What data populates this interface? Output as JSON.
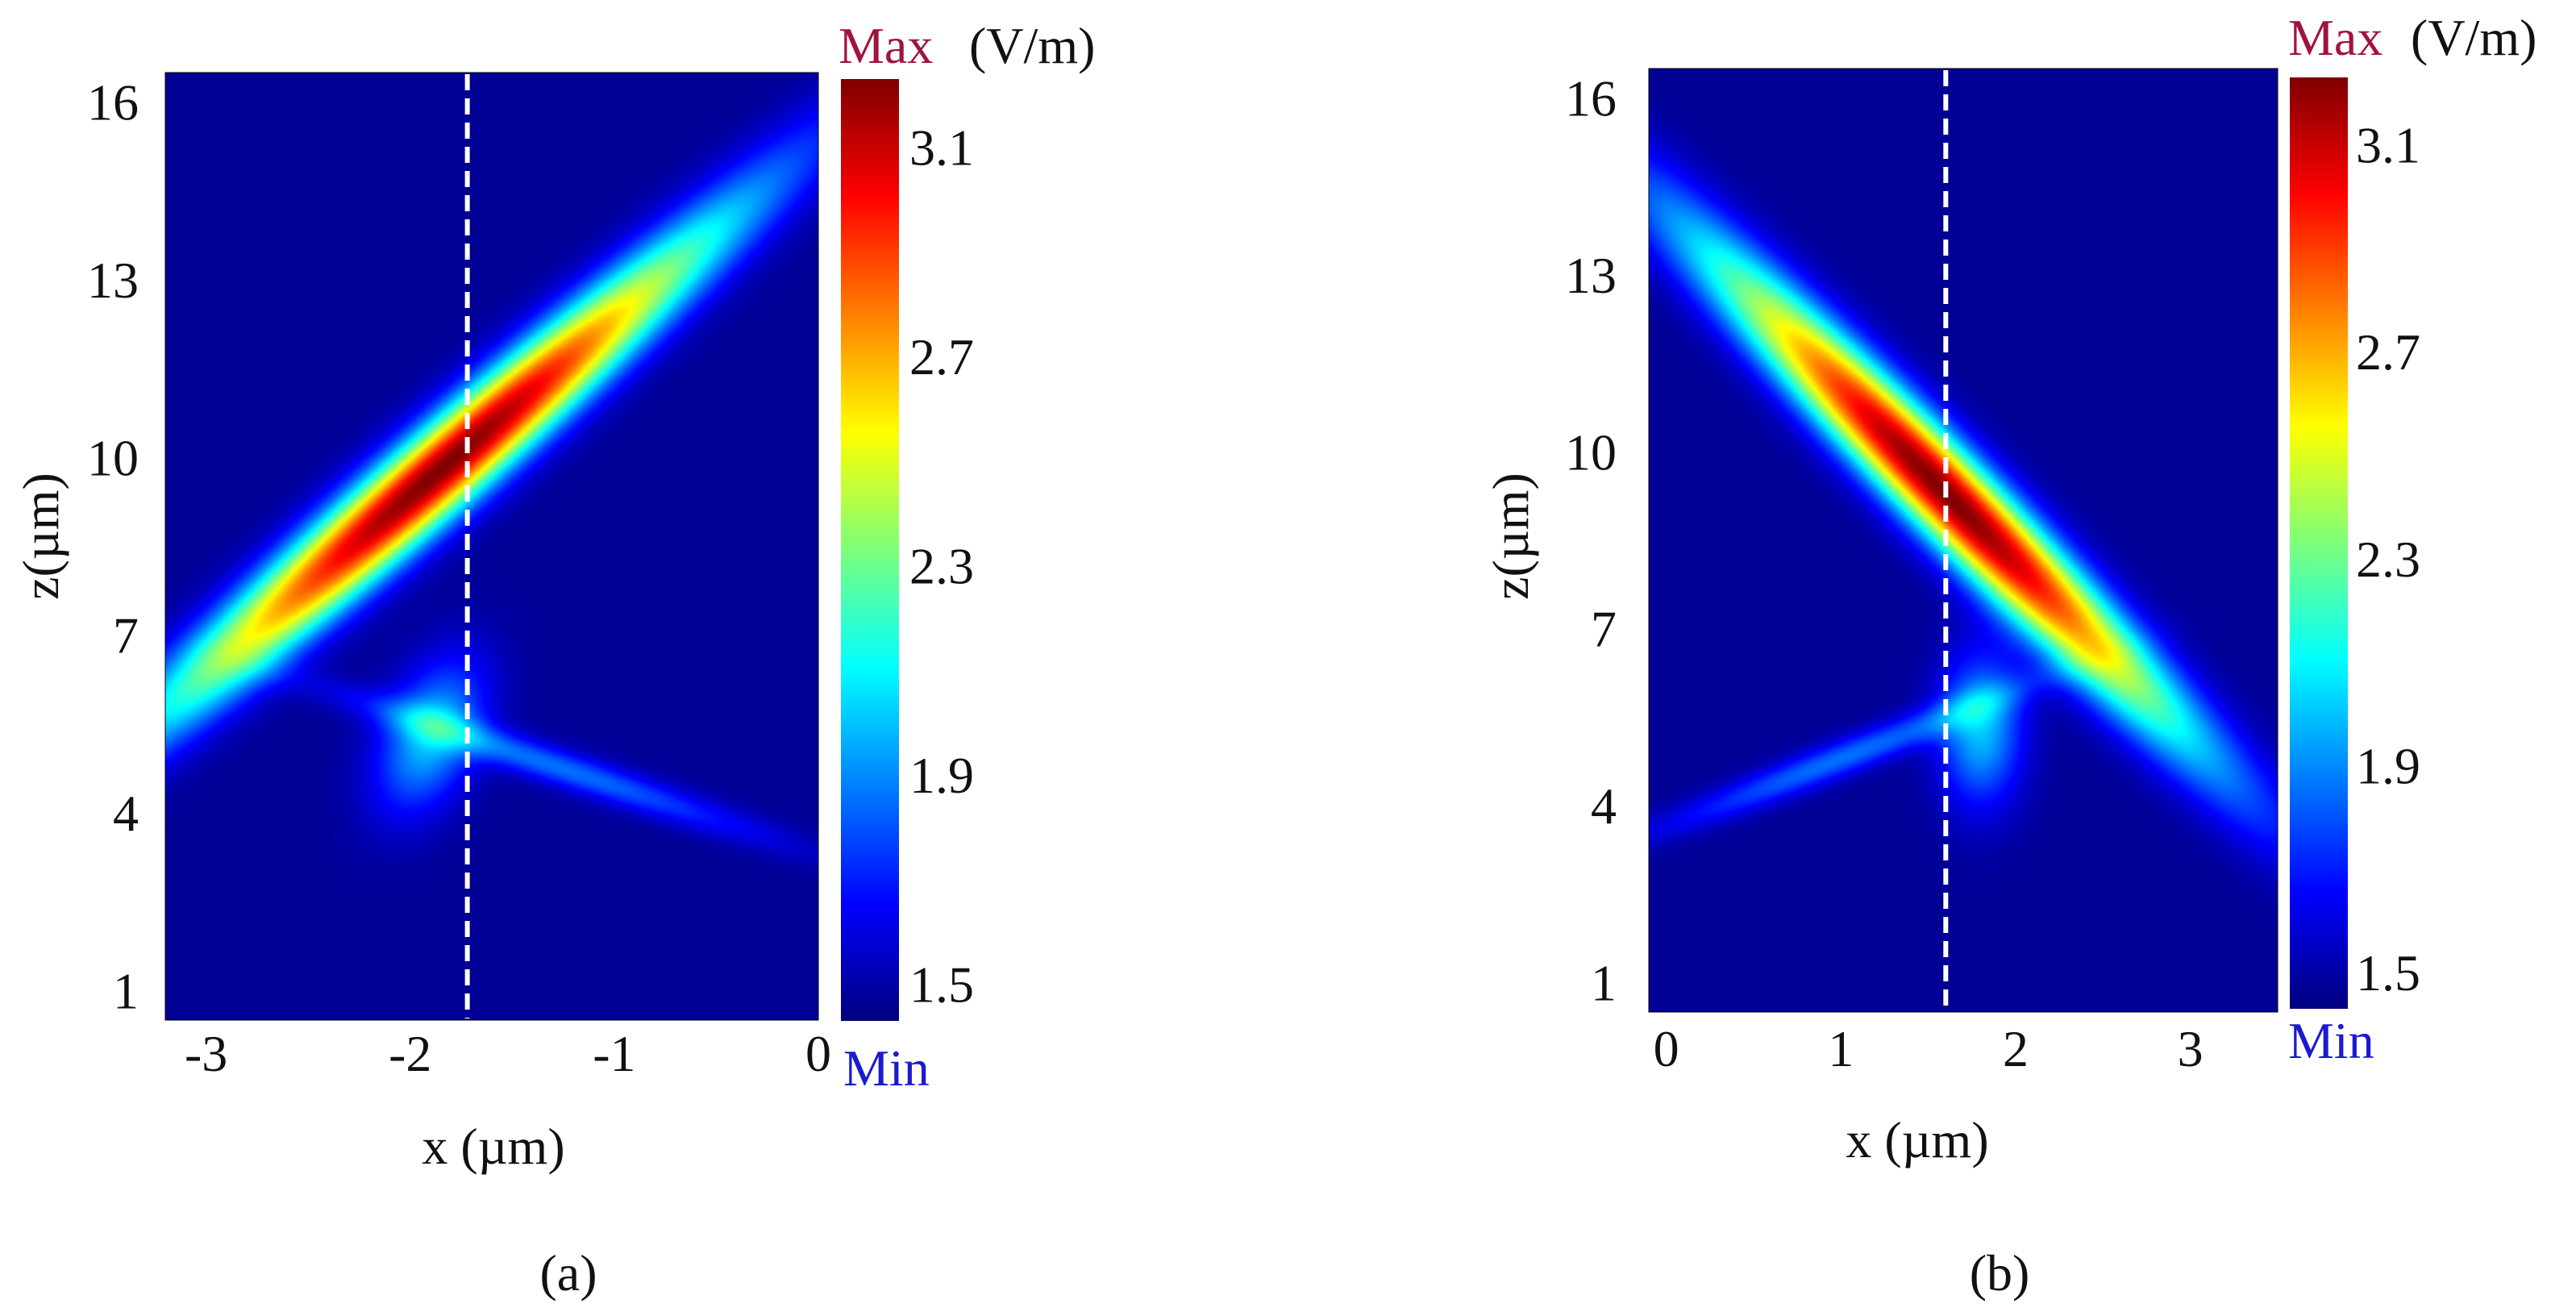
{
  "chart_data": [
    {
      "type": "heatmap",
      "panel_label": "(a)",
      "xlabel": "x (µm)",
      "ylabel": "z(µm)",
      "xlim": [
        -3.2,
        0
      ],
      "ylim": [
        0.5,
        16.5
      ],
      "xticks": [
        -3,
        -2,
        -1,
        0
      ],
      "xtick_labels": [
        "-3",
        "-2",
        "-1",
        "0"
      ],
      "yticks": [
        1,
        4,
        7,
        10,
        13,
        16
      ],
      "ytick_labels": [
        "1",
        "4",
        "7",
        "10",
        "13",
        "16"
      ],
      "dashed_line_x": -1.72,
      "colorbar": {
        "unit": "(V/m)",
        "max_label": "Max",
        "min_label": "Min",
        "range": [
          1.43,
          3.23
        ],
        "ticks": [
          1.5,
          1.9,
          2.3,
          2.7,
          3.1
        ],
        "tick_labels": [
          "1.5",
          "1.9",
          "2.3",
          "2.7",
          "3.1"
        ]
      },
      "field_components": [
        {
          "x": -1.85,
          "z": 9.8,
          "sigma_major": 3.0,
          "sigma_minor": 0.2,
          "angle_deg": 18,
          "amplitude": 1.0
        },
        {
          "x": -1.9,
          "z": 5.3,
          "sigma_major": 0.9,
          "sigma_minor": 0.17,
          "angle_deg": 5,
          "amplitude": 0.3
        },
        {
          "x": -1.3,
          "z": 4.8,
          "sigma_major": 1.1,
          "sigma_minor": 0.15,
          "angle_deg": -40,
          "amplitude": 0.22
        }
      ]
    },
    {
      "type": "heatmap",
      "panel_label": "(b)",
      "xlabel": "x (µm)",
      "ylabel": "z(µm)",
      "xlim": [
        -0.1,
        3.5
      ],
      "ylim": [
        0.5,
        16.5
      ],
      "xticks": [
        0,
        1,
        2,
        3
      ],
      "xtick_labels": [
        "0",
        "1",
        "2",
        "3"
      ],
      "yticks": [
        1,
        4,
        7,
        10,
        13,
        16
      ],
      "ytick_labels": [
        "1",
        "4",
        "7",
        "10",
        "13",
        "16"
      ],
      "dashed_line_x": 1.6,
      "colorbar": {
        "unit": "(V/m)",
        "max_label": "Max",
        "min_label": "Min",
        "range": [
          1.43,
          3.23
        ],
        "ticks": [
          1.5,
          1.9,
          2.3,
          2.7,
          3.1
        ],
        "tick_labels": [
          "1.5",
          "1.9",
          "2.3",
          "2.7",
          "3.1"
        ]
      },
      "field_components": [
        {
          "x": 1.6,
          "z": 9.3,
          "sigma_major": 3.0,
          "sigma_minor": 0.22,
          "angle_deg": -18,
          "amplitude": 1.0
        },
        {
          "x": 1.8,
          "z": 5.3,
          "sigma_major": 0.9,
          "sigma_minor": 0.17,
          "angle_deg": 0,
          "amplitude": 0.3
        },
        {
          "x": 1.0,
          "z": 4.8,
          "sigma_major": 1.1,
          "sigma_minor": 0.15,
          "angle_deg": 40,
          "amplitude": 0.22
        }
      ]
    }
  ]
}
